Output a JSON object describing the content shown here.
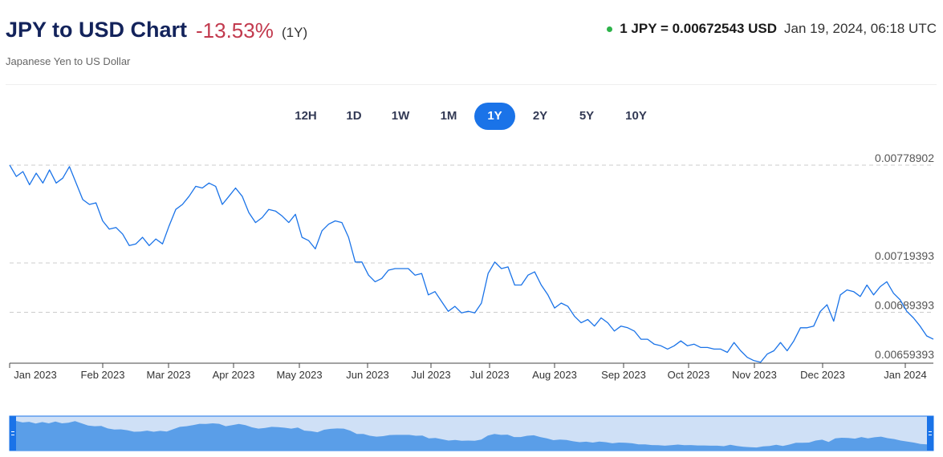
{
  "header": {
    "title": "JPY to USD Chart",
    "change": "-13.53%",
    "period": "(1Y)",
    "subtitle": "Japanese Yen to US Dollar",
    "rate": "1 JPY = 0.00672543 USD",
    "timestamp": "Jan 19, 2024, 06:18 UTC",
    "status_color": "#2db34a"
  },
  "ranges": [
    {
      "label": "12H",
      "active": false
    },
    {
      "label": "1D",
      "active": false
    },
    {
      "label": "1W",
      "active": false
    },
    {
      "label": "1M",
      "active": false
    },
    {
      "label": "1Y",
      "active": true
    },
    {
      "label": "2Y",
      "active": false
    },
    {
      "label": "5Y",
      "active": false
    },
    {
      "label": "10Y",
      "active": false
    }
  ],
  "chart_data": {
    "type": "line",
    "title": "JPY to USD Chart",
    "line_color": "#1a73e8",
    "ylim": [
      0.00659393,
      0.00778902
    ],
    "y_ticks": [
      {
        "value": 0.00778902,
        "label": "0.00778902"
      },
      {
        "value": 0.00719393,
        "label": "0.00719393"
      },
      {
        "value": 0.00689393,
        "label": "0.00689393"
      },
      {
        "value": 0.00659393,
        "label": "0.00659393"
      }
    ],
    "x_ticks": [
      "Jan 2023",
      "Feb 2023",
      "Mar 2023",
      "Apr 2023",
      "May 2023",
      "Jun 2023",
      "Jul 2023",
      "Jul 2023",
      "Aug 2023",
      "Sep 2023",
      "Oct 2023",
      "Nov 2023",
      "Dec 2023",
      "Jan 2024"
    ],
    "grid": true,
    "navigator": true,
    "series": [
      {
        "values": [
          0.00779,
          0.00772,
          0.00775,
          0.00767,
          0.00774,
          0.00768,
          0.00776,
          0.00768,
          0.00771,
          0.00778,
          0.00768,
          0.00758,
          0.00755,
          0.00756,
          0.00745,
          0.0074,
          0.00741,
          0.00737,
          0.0073,
          0.00731,
          0.00735,
          0.0073,
          0.00734,
          0.00731,
          0.00742,
          0.00752,
          0.00755,
          0.0076,
          0.00766,
          0.00765,
          0.00768,
          0.00766,
          0.00755,
          0.0076,
          0.00765,
          0.0076,
          0.0075,
          0.00744,
          0.00747,
          0.00752,
          0.00751,
          0.00748,
          0.00744,
          0.00749,
          0.00735,
          0.00733,
          0.00728,
          0.00739,
          0.00743,
          0.00745,
          0.00744,
          0.00735,
          0.0072,
          0.0072,
          0.00712,
          0.00708,
          0.0071,
          0.00715,
          0.00716,
          0.00716,
          0.00716,
          0.00712,
          0.00713,
          0.007,
          0.00702,
          0.00696,
          0.0069,
          0.00693,
          0.00689,
          0.0069,
          0.00689,
          0.00695,
          0.00713,
          0.0072,
          0.00716,
          0.00717,
          0.00706,
          0.00706,
          0.00712,
          0.00714,
          0.00706,
          0.007,
          0.00692,
          0.00695,
          0.00693,
          0.00687,
          0.00683,
          0.00685,
          0.00681,
          0.00686,
          0.00683,
          0.00678,
          0.00681,
          0.0068,
          0.00678,
          0.00673,
          0.00673,
          0.0067,
          0.00669,
          0.00667,
          0.00669,
          0.00672,
          0.00669,
          0.0067,
          0.00668,
          0.00668,
          0.00667,
          0.00667,
          0.00665,
          0.00671,
          0.00666,
          0.00662,
          0.0066,
          0.00659,
          0.00664,
          0.00666,
          0.00671,
          0.00666,
          0.00672,
          0.0068,
          0.0068,
          0.00681,
          0.0069,
          0.00694,
          0.00684,
          0.007,
          0.00703,
          0.00702,
          0.00699,
          0.00706,
          0.007,
          0.00705,
          0.00708,
          0.00701,
          0.00697,
          0.0069,
          0.00686,
          0.00681,
          0.00675,
          0.00673
        ]
      }
    ]
  }
}
